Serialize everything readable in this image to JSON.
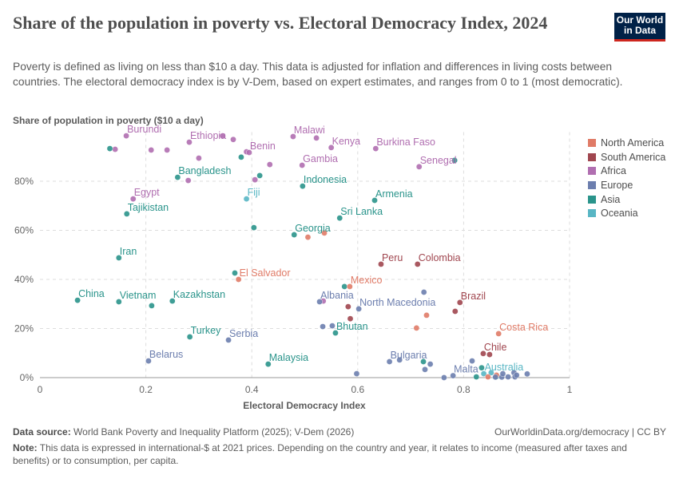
{
  "header": {
    "title": "Share of the population in poverty vs. Electoral Democracy Index, 2024",
    "subtitle": "Poverty is defined as living on less than $10 a day. This data is adjusted for inflation and differences in living costs between countries. The electoral democracy index is by V-Dem, based on expert estimates, and ranges from 0 to 1 (most democratic).",
    "logo": "Our World in Data"
  },
  "footer": {
    "source_label": "Data source:",
    "source": "World Bank Poverty and Inequality Platform (2025); V-Dem (2026)",
    "credit": "OurWorldinData.org/democracy | CC BY",
    "note_label": "Note:",
    "note": "This data is expressed in international-$ at 2021 prices. Depending on the country and year, it relates to income (measured after taxes and benefits) or to consumption, per capita."
  },
  "chart_data": {
    "type": "scatter",
    "xlabel": "Electoral Democracy Index",
    "ylabel": "Share of population in poverty ($10 a day)",
    "xlim": [
      0,
      1
    ],
    "ylim": [
      0,
      100
    ],
    "xticks": [
      "0",
      "0.2",
      "0.4",
      "0.6",
      "0.8",
      "1"
    ],
    "yticks": [
      "0%",
      "20%",
      "40%",
      "60%",
      "80%"
    ],
    "grid": true,
    "legend_position": "right",
    "legend": [
      {
        "name": "North America",
        "color": "#e07b67"
      },
      {
        "name": "South America",
        "color": "#a0464f"
      },
      {
        "name": "Africa",
        "color": "#b06eb0"
      },
      {
        "name": "Europe",
        "color": "#6c7eae"
      },
      {
        "name": "Asia",
        "color": "#2a948b"
      },
      {
        "name": "Oceania",
        "color": "#58b6c4"
      }
    ],
    "points": [
      {
        "x": 0.163,
        "y": 98.5,
        "region": "Africa",
        "label": "Burundi"
      },
      {
        "x": 0.142,
        "y": 93,
        "region": "Africa"
      },
      {
        "x": 0.21,
        "y": 92.7,
        "region": "Africa"
      },
      {
        "x": 0.24,
        "y": 92.7,
        "region": "Africa"
      },
      {
        "x": 0.282,
        "y": 95.9,
        "region": "Africa",
        "label": "Ethiopia"
      },
      {
        "x": 0.345,
        "y": 98.5,
        "region": "Africa"
      },
      {
        "x": 0.365,
        "y": 97,
        "region": "Africa"
      },
      {
        "x": 0.3,
        "y": 89.4,
        "region": "Africa"
      },
      {
        "x": 0.39,
        "y": 92,
        "region": "Africa"
      },
      {
        "x": 0.395,
        "y": 91.7,
        "region": "Africa",
        "label": "Benin"
      },
      {
        "x": 0.434,
        "y": 86.8,
        "region": "Africa"
      },
      {
        "x": 0.28,
        "y": 80.3,
        "region": "Africa"
      },
      {
        "x": 0.406,
        "y": 80.6,
        "region": "Africa"
      },
      {
        "x": 0.176,
        "y": 72.8,
        "region": "Africa",
        "label": "Egypt"
      },
      {
        "x": 0.478,
        "y": 98.2,
        "region": "Africa",
        "label": "Malawi"
      },
      {
        "x": 0.522,
        "y": 97.6,
        "region": "Africa"
      },
      {
        "x": 0.495,
        "y": 86.5,
        "region": "Africa",
        "label": "Gambia"
      },
      {
        "x": 0.55,
        "y": 93.7,
        "region": "Africa",
        "label": "Kenya"
      },
      {
        "x": 0.634,
        "y": 93.3,
        "region": "Africa",
        "label": "Burkina Faso"
      },
      {
        "x": 0.716,
        "y": 85.9,
        "region": "Africa",
        "label": "Senegal"
      },
      {
        "x": 0.535,
        "y": 31.2,
        "region": "Africa"
      },
      {
        "x": 0.132,
        "y": 93.3,
        "region": "Asia"
      },
      {
        "x": 0.38,
        "y": 89.8,
        "region": "Asia"
      },
      {
        "x": 0.26,
        "y": 81.6,
        "region": "Asia",
        "label": "Bangladesh"
      },
      {
        "x": 0.415,
        "y": 82.3,
        "region": "Asia"
      },
      {
        "x": 0.496,
        "y": 78,
        "region": "Asia",
        "label": "Indonesia"
      },
      {
        "x": 0.164,
        "y": 66.7,
        "region": "Asia",
        "label": "Tajikistan"
      },
      {
        "x": 0.404,
        "y": 61.1,
        "region": "Asia"
      },
      {
        "x": 0.48,
        "y": 58.2,
        "region": "Asia",
        "label": "Georgia"
      },
      {
        "x": 0.566,
        "y": 65,
        "region": "Asia",
        "label": "Sri Lanka"
      },
      {
        "x": 0.632,
        "y": 72.2,
        "region": "Asia",
        "label": "Armenia"
      },
      {
        "x": 0.783,
        "y": 88.5,
        "region": "Asia"
      },
      {
        "x": 0.149,
        "y": 48.8,
        "region": "Asia",
        "label": "Iran"
      },
      {
        "x": 0.368,
        "y": 42.6,
        "region": "Asia"
      },
      {
        "x": 0.071,
        "y": 31.5,
        "region": "Asia",
        "label": "China"
      },
      {
        "x": 0.149,
        "y": 30.9,
        "region": "Asia",
        "label": "Vietnam"
      },
      {
        "x": 0.211,
        "y": 29.3,
        "region": "Asia"
      },
      {
        "x": 0.25,
        "y": 31.2,
        "region": "Asia",
        "label": "Kazakhstan"
      },
      {
        "x": 0.283,
        "y": 16.6,
        "region": "Asia",
        "label": "Turkey"
      },
      {
        "x": 0.431,
        "y": 5.5,
        "region": "Asia",
        "label": "Malaysia"
      },
      {
        "x": 0.575,
        "y": 37.1,
        "region": "Asia"
      },
      {
        "x": 0.558,
        "y": 18.2,
        "region": "Asia",
        "label": "Bhutan"
      },
      {
        "x": 0.724,
        "y": 6.5,
        "region": "Asia"
      },
      {
        "x": 0.824,
        "y": 0.3,
        "region": "Asia"
      },
      {
        "x": 0.834,
        "y": 4,
        "region": "Asia"
      },
      {
        "x": 0.862,
        "y": 0.4,
        "region": "Asia"
      },
      {
        "x": 0.39,
        "y": 72.8,
        "region": "Oceania",
        "label": "Fiji"
      },
      {
        "x": 0.838,
        "y": 1.6,
        "region": "Oceania",
        "label": "Australia"
      },
      {
        "x": 0.852,
        "y": 2,
        "region": "Oceania"
      },
      {
        "x": 0.375,
        "y": 40,
        "region": "North America",
        "label": "El Salvador"
      },
      {
        "x": 0.585,
        "y": 37.1,
        "region": "North America",
        "label": "Mexico"
      },
      {
        "x": 0.506,
        "y": 57.2,
        "region": "North America"
      },
      {
        "x": 0.537,
        "y": 58.9,
        "region": "North America"
      },
      {
        "x": 0.73,
        "y": 25.4,
        "region": "North America"
      },
      {
        "x": 0.711,
        "y": 20.2,
        "region": "North America"
      },
      {
        "x": 0.866,
        "y": 17.9,
        "region": "North America",
        "label": "Costa Rica"
      },
      {
        "x": 0.846,
        "y": 0.3,
        "region": "North America"
      },
      {
        "x": 0.862,
        "y": 1,
        "region": "North America"
      },
      {
        "x": 0.644,
        "y": 46.2,
        "region": "South America",
        "label": "Peru"
      },
      {
        "x": 0.713,
        "y": 46.2,
        "region": "South America",
        "label": "Colombia"
      },
      {
        "x": 0.793,
        "y": 30.6,
        "region": "South America",
        "label": "Brazil"
      },
      {
        "x": 0.784,
        "y": 27,
        "region": "South America"
      },
      {
        "x": 0.582,
        "y": 28.9,
        "region": "South America"
      },
      {
        "x": 0.586,
        "y": 24,
        "region": "South America"
      },
      {
        "x": 0.837,
        "y": 9.8,
        "region": "South America",
        "label": "Chile"
      },
      {
        "x": 0.849,
        "y": 9.4,
        "region": "South America"
      },
      {
        "x": 0.725,
        "y": 34.8,
        "region": "Europe"
      },
      {
        "x": 0.528,
        "y": 30.9,
        "region": "Europe",
        "label": "Albania"
      },
      {
        "x": 0.602,
        "y": 28,
        "region": "Europe",
        "label": "North Macedonia"
      },
      {
        "x": 0.534,
        "y": 20.8,
        "region": "Europe"
      },
      {
        "x": 0.552,
        "y": 21.1,
        "region": "Europe"
      },
      {
        "x": 0.356,
        "y": 15.3,
        "region": "Europe",
        "label": "Serbia"
      },
      {
        "x": 0.205,
        "y": 6.8,
        "region": "Europe",
        "label": "Belarus"
      },
      {
        "x": 0.66,
        "y": 6.5,
        "region": "Europe",
        "label": "Bulgaria"
      },
      {
        "x": 0.679,
        "y": 7.2,
        "region": "Europe"
      },
      {
        "x": 0.737,
        "y": 5.5,
        "region": "Europe"
      },
      {
        "x": 0.727,
        "y": 3.3,
        "region": "Europe"
      },
      {
        "x": 0.598,
        "y": 1.6,
        "region": "Europe"
      },
      {
        "x": 0.763,
        "y": 0,
        "region": "Europe"
      },
      {
        "x": 0.78,
        "y": 0.8,
        "region": "Europe",
        "label": "Malta"
      },
      {
        "x": 0.816,
        "y": 6.8,
        "region": "Europe"
      },
      {
        "x": 0.86,
        "y": 0.2,
        "region": "Europe"
      },
      {
        "x": 0.872,
        "y": 0.2,
        "region": "Europe"
      },
      {
        "x": 0.884,
        "y": 0.3,
        "region": "Europe"
      },
      {
        "x": 0.874,
        "y": 1.6,
        "region": "Europe"
      },
      {
        "x": 0.895,
        "y": 2,
        "region": "Europe"
      },
      {
        "x": 0.897,
        "y": 0.3,
        "region": "Europe"
      },
      {
        "x": 0.9,
        "y": 1,
        "region": "Europe"
      },
      {
        "x": 0.92,
        "y": 1.5,
        "region": "Europe"
      }
    ]
  }
}
